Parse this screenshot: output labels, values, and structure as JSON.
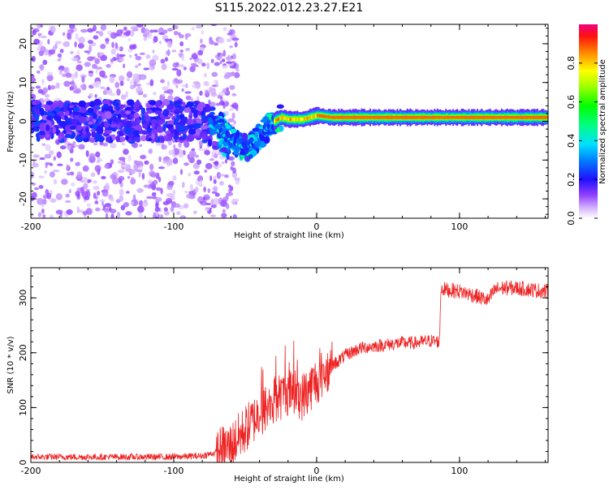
{
  "title": "S115.2022.012.23.27.E21",
  "chart_data": [
    {
      "type": "heatmap",
      "xlabel": "Height of straight line (km)",
      "ylabel": "Frequency (Hz)",
      "xlim": [
        -200,
        162
      ],
      "ylim": [
        -25,
        25
      ],
      "xticks": [
        -200,
        -100,
        0,
        100
      ],
      "yticks": [
        -20,
        -10,
        0,
        10,
        20
      ],
      "colorbar": {
        "label": "Normalized spectral amplitude",
        "range": [
          0,
          1
        ],
        "ticks": [
          0.0,
          0.2,
          0.4,
          0.6,
          0.8
        ]
      },
      "center_frequency": {
        "x": [
          -200,
          -80,
          -70,
          -60,
          -50,
          -45,
          -40,
          -35,
          -30,
          -25,
          -20,
          -10,
          0,
          10,
          160
        ],
        "y": [
          0,
          0,
          -2,
          -5,
          -7,
          -6,
          -4,
          -2,
          0,
          1,
          0.5,
          0.5,
          1.5,
          1,
          1
        ]
      },
      "grid": false
    },
    {
      "type": "line",
      "xlabel": "Height of straight line (km)",
      "ylabel": "SNR (10 * v/v)",
      "xlim": [
        -200,
        162
      ],
      "ylim": [
        0,
        355
      ],
      "xticks": [
        -200,
        -100,
        0,
        100
      ],
      "yticks": [
        0,
        100,
        200,
        300
      ],
      "series": [
        {
          "color": "#ee2222",
          "x": [
            -200,
            -150,
            -100,
            -80,
            -70,
            -60,
            -50,
            -40,
            -30,
            -20,
            -10,
            0,
            10,
            20,
            30,
            40,
            50,
            60,
            70,
            80,
            86,
            87,
            90,
            100,
            110,
            120,
            125,
            130,
            140,
            150,
            160
          ],
          "y": [
            10,
            10,
            10,
            12,
            18,
            30,
            60,
            90,
            110,
            130,
            120,
            150,
            175,
            195,
            208,
            212,
            215,
            218,
            218,
            222,
            220,
            318,
            315,
            312,
            305,
            295,
            315,
            318,
            318,
            315,
            312
          ]
        }
      ],
      "grid": false
    }
  ]
}
